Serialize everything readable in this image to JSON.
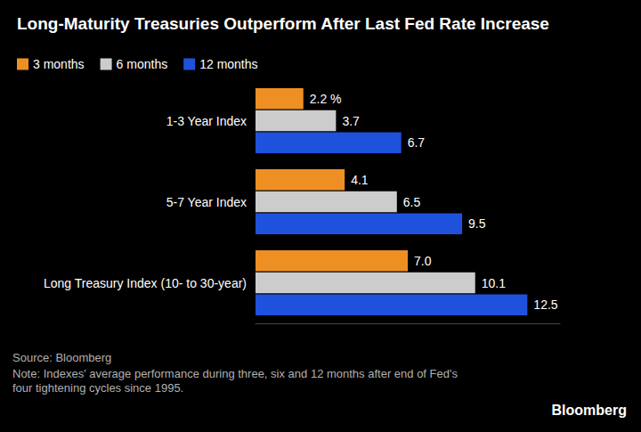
{
  "chart_data": {
    "type": "bar",
    "title": "Long-Maturity Treasuries Outperform After Last Fed Rate Increase",
    "orientation": "horizontal",
    "categories": [
      "1-3 Year Index",
      "5-7 Year Index",
      "Long Treasury Index (10- to 30-year)"
    ],
    "series": [
      {
        "name": "3 months",
        "color": "#ee8f23",
        "values": [
          2.2,
          4.1,
          7.0
        ],
        "value_labels": [
          "2.2 %",
          "4.1",
          "7.0"
        ]
      },
      {
        "name": "6 months",
        "color": "#cccccc",
        "values": [
          3.7,
          6.5,
          10.1
        ]
      },
      {
        "name": "12 months",
        "color": "#1f52dc",
        "values": [
          6.7,
          9.5,
          12.5
        ]
      }
    ],
    "xlim": [
      0,
      14
    ],
    "tick_labels": "y",
    "grid": false,
    "legend": "top-left",
    "data_labels": true,
    "source": "Source: Bloomberg",
    "note": "Note: Indexes' average performance during three, six and 12 months after end of Fed's four tightening cycles since 1995.",
    "brand": "Bloomberg"
  }
}
